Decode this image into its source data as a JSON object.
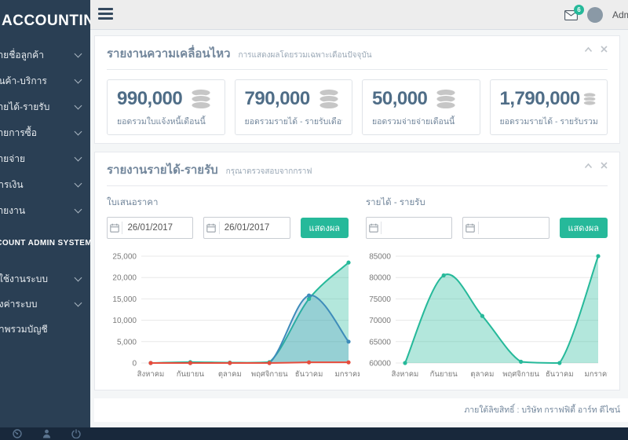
{
  "app": {
    "logo": "ACCOUNTING"
  },
  "topbar": {
    "username": "Admin",
    "messages_badge": "6"
  },
  "sidebar": {
    "menu": [
      {
        "label": "รายชื่อลูกค้า"
      },
      {
        "label": "สินค้า-บริการ"
      },
      {
        "label": "รายได้-รายรับ"
      },
      {
        "label": "รายการซื้อ"
      },
      {
        "label": "รายจ่าย"
      },
      {
        "label": "การเงิน"
      },
      {
        "label": "รายงาน"
      }
    ],
    "section_header": "ACCOUNT ADMIN SYSTEM",
    "menu2": [
      {
        "label": "ผู้ใช้งานระบบ"
      },
      {
        "label": "ตั้งค่าระบบ"
      },
      {
        "label": "ภาพรวมบัญชี"
      }
    ]
  },
  "panel_movement": {
    "title": "รายงานความเคลื่อนไหว",
    "subtitle": "การแสดงผลโดยรวมเฉพาะเดือนปัจจุบัน",
    "cards": [
      {
        "value": "990,000",
        "label": "ยอดรวมใบแจ้งหนี้เดือนนี้"
      },
      {
        "value": "790,000",
        "label": "ยอดรวมรายได้ - รายรับเดือนนี้"
      },
      {
        "value": "50,000",
        "label": "ยอดรวมจ่ายจ่ายเดือนนี้"
      },
      {
        "value": "1,790,000",
        "label": "ยอดรวมรายได้ - รายรับรวมทั้งหมด"
      }
    ]
  },
  "panel_income": {
    "title": "รายงานรายได้-รายรับ",
    "subtitle": "กรุณาตรวจสอบจากกราฟ",
    "form_left": {
      "label": "ใบเสนอราคา",
      "date_from": "26/01/2017",
      "date_to": "26/01/2017",
      "submit_label": "แสดงผล"
    },
    "form_right": {
      "label": "รายได้ - รายรับ",
      "date_from": "",
      "date_to": "",
      "submit_label": "แสดงผล"
    }
  },
  "footer": {
    "copyright": "ภายใต้ลิขสิทธิ์ : บริษัท กราฟฟิตี้ อาร์ท ดีไซน์"
  },
  "colors": {
    "sidebar_bg": "#2A3F54",
    "accent_green": "#26B99A",
    "chart_blue": "#3E8CBA",
    "chart_red": "#E74C3C",
    "title_text": "#73879C",
    "stat_number": "#4F6D87"
  },
  "chart_data": [
    {
      "type": "area",
      "title": "ใบเสนอราคา",
      "categories": [
        "สิงหาคม",
        "กันยายน",
        "ตุลาคม",
        "พฤศจิกายน",
        "ธันวาคม",
        "มกราคม"
      ],
      "ylim": [
        0,
        25000
      ],
      "yticks": [
        "0",
        "5,000",
        "10,000",
        "15,000",
        "20,000",
        "25,000"
      ],
      "grid": true,
      "legend": "none",
      "series": [
        {
          "name": "green",
          "color": "#26B99A",
          "fill": "rgba(38,185,154,0.35)",
          "values": [
            0,
            200,
            100,
            200,
            15000,
            23500
          ]
        },
        {
          "name": "blue",
          "color": "#3E8CBA",
          "fill": "rgba(62,140,186,0.25)",
          "values": [
            0,
            0,
            0,
            0,
            15800,
            5000
          ]
        },
        {
          "name": "red",
          "color": "#E74C3C",
          "fill": "none",
          "values": [
            0,
            0,
            0,
            0,
            150,
            150
          ]
        }
      ]
    },
    {
      "type": "area",
      "title": "รายได้ - รายรับ",
      "categories": [
        "สิงหาคม",
        "กันยายน",
        "ตุลาคม",
        "พฤศจิกายน",
        "ธันวาคม",
        "มกราคม"
      ],
      "ylim": [
        60000,
        85000
      ],
      "yticks": [
        "60000",
        "65000",
        "70000",
        "75000",
        "80000",
        "85000"
      ],
      "grid": true,
      "legend": "none",
      "series": [
        {
          "name": "green",
          "color": "#26B99A",
          "fill": "rgba(38,185,154,0.35)",
          "values": [
            60000,
            80500,
            71000,
            60300,
            60000,
            85000
          ]
        }
      ]
    }
  ]
}
